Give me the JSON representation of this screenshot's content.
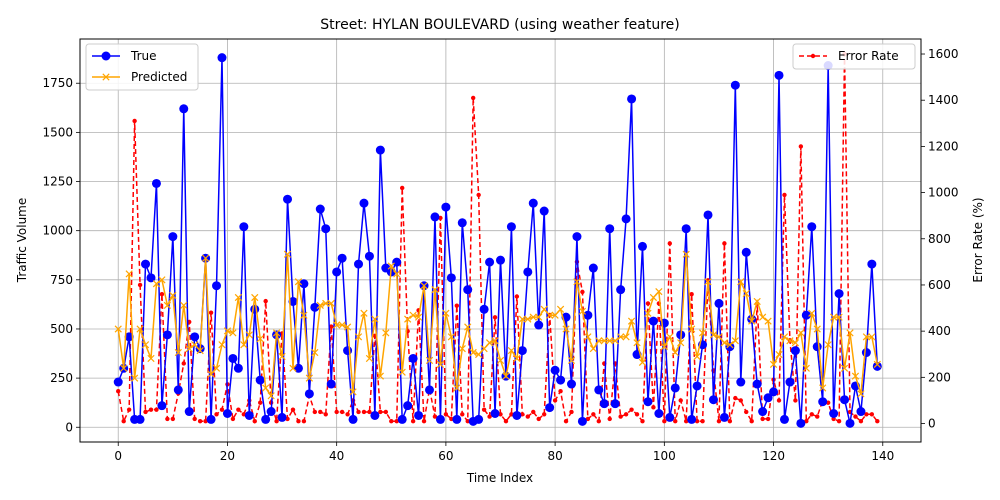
{
  "chart_data": {
    "type": "line",
    "title": "Street: HYLAN BOULEVARD (using weather feature)",
    "xlabel": "Time Index",
    "ylabel": "Traffic Volume",
    "y2label": "Error Rate (%)",
    "xlim": [
      -7,
      147
    ],
    "ylim": [
      -75,
      1975
    ],
    "y2lim": [
      -80,
      1665
    ],
    "xticks": [
      0,
      20,
      40,
      60,
      80,
      100,
      120,
      140
    ],
    "yticks": [
      0,
      250,
      500,
      750,
      1000,
      1250,
      1500,
      1750
    ],
    "y2ticks": [
      0,
      200,
      400,
      600,
      800,
      1000,
      1200,
      1400,
      1600
    ],
    "grid": true,
    "legend_left": {
      "placement": "upper-left",
      "entries": [
        "True",
        "Predicted"
      ]
    },
    "legend_right": {
      "placement": "upper-right",
      "entries": [
        "Error Rate"
      ]
    },
    "colors": {
      "true": "#0000ff",
      "predicted": "#ffa500",
      "error": "#ff0000"
    },
    "series": [
      {
        "name": "True",
        "axis": "left",
        "values": [
          230,
          300,
          460,
          40,
          40,
          830,
          760,
          1240,
          110,
          470,
          970,
          190,
          1620,
          80,
          460,
          400,
          860,
          40,
          720,
          1880,
          70,
          350,
          300,
          1020,
          60,
          600,
          240,
          40,
          80,
          470,
          50,
          1160,
          640,
          300,
          730,
          170,
          610,
          1110,
          1010,
          220,
          790,
          860,
          390,
          40,
          830,
          1140,
          870,
          60,
          1410,
          810,
          790,
          840,
          40,
          110,
          350,
          60,
          720,
          190,
          1070,
          40,
          1120,
          760,
          40,
          1040,
          700,
          30,
          40,
          600,
          840,
          70,
          850,
          260,
          1020,
          60,
          390,
          790,
          1140,
          520,
          1100,
          100,
          290,
          240,
          560,
          220,
          970,
          30,
          570,
          810,
          190,
          120,
          1010,
          120,
          700,
          1060,
          1670,
          370,
          920,
          130,
          540,
          70,
          530,
          50,
          200,
          470,
          1010,
          40,
          210,
          420,
          1080,
          140,
          630,
          50,
          410,
          1740,
          230,
          890,
          550,
          220,
          80,
          150,
          180,
          1790,
          40,
          230,
          390,
          20,
          570,
          1020,
          410,
          130,
          1840,
          70,
          680,
          140,
          20,
          210,
          80,
          380,
          830,
          310
        ]
      },
      {
        "name": "Predicted",
        "axis": "left",
        "values": [
          500,
          300,
          780,
          250,
          500,
          420,
          350,
          730,
          750,
          620,
          670,
          380,
          620,
          400,
          420,
          390,
          860,
          270,
          300,
          420,
          490,
          480,
          660,
          420,
          470,
          660,
          450,
          200,
          160,
          480,
          360,
          880,
          300,
          740,
          570,
          250,
          380,
          620,
          630,
          630,
          520,
          520,
          510,
          180,
          460,
          580,
          350,
          550,
          260,
          480,
          820,
          780,
          280,
          550,
          570,
          560,
          720,
          340,
          700,
          320,
          580,
          460,
          200,
          400,
          510,
          380,
          370,
          400,
          430,
          440,
          340,
          260,
          390,
          350,
          550,
          550,
          560,
          560,
          600,
          570,
          570,
          600,
          500,
          340,
          740,
          590,
          460,
          400,
          440,
          440,
          440,
          440,
          460,
          460,
          540,
          430,
          330,
          580,
          660,
          690,
          410,
          460,
          380,
          430,
          880,
          500,
          360,
          480,
          740,
          470,
          460,
          430,
          420,
          440,
          740,
          680,
          540,
          640,
          560,
          540,
          320,
          370,
          460,
          440,
          430,
          480,
          300,
          580,
          500,
          200,
          420,
          560,
          560,
          300,
          480,
          260,
          170,
          460,
          460,
          320
        ]
      },
      {
        "name": "Error Rate",
        "axis": "right",
        "values": [
          140,
          10,
          60,
          1310,
          600,
          50,
          60,
          60,
          560,
          20,
          20,
          130,
          260,
          440,
          20,
          10,
          10,
          480,
          40,
          60,
          170,
          20,
          60,
          40,
          100,
          10,
          90,
          530,
          90,
          10,
          390,
          20,
          60,
          10,
          10,
          120,
          50,
          50,
          40,
          420,
          50,
          50,
          40,
          100,
          50,
          50,
          50,
          380,
          50,
          50,
          10,
          10,
          1020,
          400,
          10,
          490,
          10,
          150,
          30,
          890,
          40,
          20,
          510,
          40,
          10,
          1410,
          990,
          60,
          30,
          460,
          40,
          10,
          40,
          550,
          40,
          30,
          50,
          20,
          40,
          470,
          100,
          140,
          10,
          50,
          700,
          570,
          20,
          40,
          10,
          260,
          20,
          260,
          30,
          40,
          60,
          40,
          10,
          520,
          70,
          520,
          10,
          780,
          10,
          100,
          10,
          560,
          10,
          10,
          620,
          230,
          10,
          780,
          10,
          110,
          100,
          50,
          10,
          520,
          20,
          20,
          190,
          100,
          990,
          360,
          100,
          1200,
          10,
          40,
          30,
          100,
          90,
          20,
          10,
          1600,
          50,
          30,
          10,
          40,
          40,
          10
        ]
      }
    ]
  }
}
